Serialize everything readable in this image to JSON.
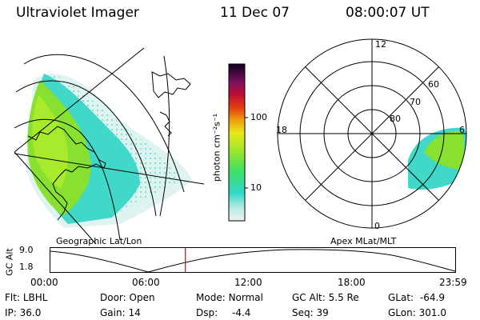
{
  "header": {
    "instrument": "Ultraviolet Imager",
    "date": "11 Dec 07",
    "time": "08:00:07 UT"
  },
  "colorbar": {
    "unit_label": "photon cm⁻²s⁻¹",
    "ticks": [
      "100",
      "10"
    ]
  },
  "panels": {
    "geographic_label": "Geographic Lat/Lon",
    "apex_label": "Apex MLat/MLT"
  },
  "polar_plot": {
    "mlt_labels": {
      "top": "12",
      "left": "18",
      "right": "6",
      "bottom": "0"
    },
    "lat_labels": [
      "60",
      "70",
      "80"
    ]
  },
  "altitude_plot": {
    "y_label": "GC Alt",
    "y_ticks": [
      "9.0",
      "1.8"
    ],
    "x_ticks": [
      "00:00",
      "06:00",
      "12:00",
      "18:00",
      "23:59"
    ],
    "current_time_fraction": 0.3334
  },
  "status": {
    "filter_label": "Flt:",
    "filter_value": "LBHL",
    "ip_label": "IP:",
    "ip_value": "36.0",
    "door_label": "Door:",
    "door_value": "Open",
    "gain_label": "Gain:",
    "gain_value": "14",
    "mode_label": "Mode:",
    "mode_value": "Normal",
    "dsp_label": "Dsp:",
    "dsp_value": "-4.4",
    "gcalt_label": "GC Alt:",
    "gcalt_value": "5.5 Re",
    "seq_label": "Seq:",
    "seq_value": "39",
    "glat_label": "GLat:",
    "glat_value": "-64.9",
    "glon_label": "GLon:",
    "glon_value": "301.0"
  },
  "colors": {
    "background": "#ffffff",
    "marker": "#dd0000",
    "emission_low": "#40d8c8",
    "emission_high": "#80e020"
  }
}
